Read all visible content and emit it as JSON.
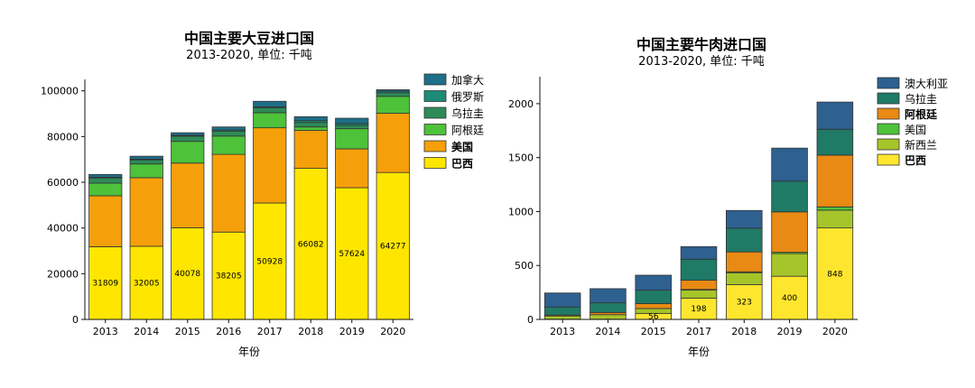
{
  "chart_data": [
    {
      "type": "bar",
      "stacked": true,
      "title": "中国主要大豆进口国",
      "subtitle": "2013-2020, 单位: 千吨",
      "xlabel": "年份",
      "ylabel": "",
      "ylim": [
        0,
        105000
      ],
      "yticks": [
        0,
        20000,
        40000,
        60000,
        80000,
        100000
      ],
      "categories": [
        "2013",
        "2014",
        "2015",
        "2016",
        "2017",
        "2018",
        "2019",
        "2020"
      ],
      "legend_position": "right",
      "grid": false,
      "series": [
        {
          "name": "巴西",
          "color": "#ffe600",
          "bold": true,
          "values": [
            31809,
            32005,
            40078,
            38205,
            50928,
            66082,
            57624,
            64277
          ]
        },
        {
          "name": "美国",
          "color": "#f5a00a",
          "bold": true,
          "values": [
            22300,
            30000,
            28300,
            34000,
            32900,
            16600,
            17000,
            25900
          ]
        },
        {
          "name": "阿根廷",
          "color": "#4dc23a",
          "bold": false,
          "values": [
            5500,
            6000,
            9500,
            8000,
            6600,
            1500,
            8800,
            7400
          ]
        },
        {
          "name": "乌拉圭",
          "color": "#2e8b57",
          "bold": false,
          "values": [
            2300,
            1800,
            2300,
            2200,
            2100,
            2000,
            1500,
            1600
          ]
        },
        {
          "name": "俄罗斯",
          "color": "#1e8a78",
          "bold": false,
          "values": [
            300,
            300,
            400,
            500,
            500,
            800,
            800,
            700
          ]
        },
        {
          "name": "加拿大",
          "color": "#1e6f8a",
          "bold": false,
          "values": [
            1200,
            1300,
            1100,
            1300,
            2400,
            1700,
            2300,
            600
          ]
        }
      ],
      "data_labels": {
        "series": "巴西",
        "values": [
          "31809",
          "32005",
          "40078",
          "38205",
          "50928",
          "66082",
          "57624",
          "64277"
        ]
      }
    },
    {
      "type": "bar",
      "stacked": true,
      "title": "中国主要牛肉进口国",
      "subtitle": "2013-2020, 单位: 千吨",
      "xlabel": "年份",
      "ylabel": "",
      "ylim": [
        0,
        2250
      ],
      "yticks": [
        0,
        500,
        1000,
        1500,
        2000
      ],
      "categories": [
        "2013",
        "2014",
        "2015",
        "2017",
        "2018",
        "2019",
        "2020"
      ],
      "legend_position": "right",
      "grid": false,
      "series": [
        {
          "name": "巴西",
          "color": "#ffe62e",
          "bold": true,
          "values": [
            2,
            2,
            56,
            198,
            323,
            400,
            848
          ]
        },
        {
          "name": "新西兰",
          "color": "#a6c52a",
          "bold": false,
          "values": [
            30,
            42,
            45,
            75,
            110,
            210,
            165
          ]
        },
        {
          "name": "美国",
          "color": "#4dc23a",
          "bold": false,
          "values": [
            0,
            0,
            0,
            5,
            8,
            12,
            30
          ]
        },
        {
          "name": "阿根廷",
          "color": "#e88a14",
          "bold": true,
          "values": [
            8,
            20,
            45,
            85,
            185,
            375,
            480
          ]
        },
        {
          "name": "乌拉圭",
          "color": "#1f7a66",
          "bold": false,
          "values": [
            75,
            90,
            125,
            195,
            220,
            285,
            240
          ]
        },
        {
          "name": "澳大利亚",
          "color": "#2e6090",
          "bold": false,
          "values": [
            130,
            131,
            139,
            117,
            164,
            306,
            252
          ]
        }
      ],
      "data_labels": {
        "series": "巴西",
        "values": [
          "",
          "",
          "56",
          "198",
          "323",
          "400",
          "848"
        ]
      }
    }
  ]
}
